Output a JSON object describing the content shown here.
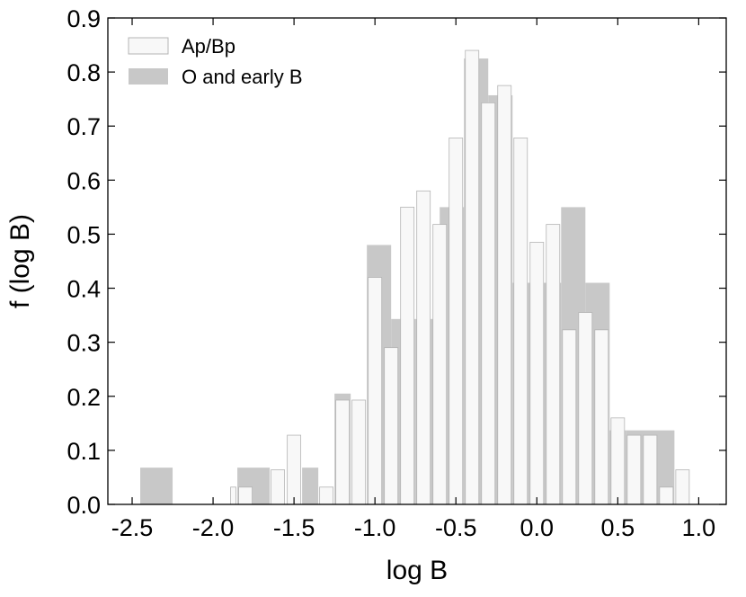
{
  "chart_data": {
    "type": "bar",
    "xlabel": "log B",
    "ylabel": "f (log B)",
    "xlim": [
      -2.65,
      1.17
    ],
    "ylim": [
      0,
      0.9
    ],
    "xticks": [
      -2.5,
      -2.0,
      -1.5,
      -1.0,
      -0.5,
      0.0,
      0.5,
      1.0
    ],
    "xtick_labels": [
      "-2.5",
      "-2.0",
      "-1.5",
      "-1.0",
      "-0.5",
      "0.0",
      "0.5",
      "1.0"
    ],
    "yticks": [
      0.0,
      0.1,
      0.2,
      0.3,
      0.4,
      0.5,
      0.6,
      0.7,
      0.8,
      0.9
    ],
    "ytick_labels": [
      "0.0",
      "0.1",
      "0.2",
      "0.3",
      "0.4",
      "0.5",
      "0.6",
      "0.7",
      "0.8",
      "0.9"
    ],
    "legend_position": "top-left",
    "series": [
      {
        "name": "O and early B",
        "color": "#c8c8c8",
        "bins": [
          {
            "x0": -2.45,
            "x1": -2.25,
            "y": 0.068
          },
          {
            "x0": -1.85,
            "x1": -1.65,
            "y": 0.068
          },
          {
            "x0": -1.45,
            "x1": -1.35,
            "y": 0.068
          },
          {
            "x0": -1.25,
            "x1": -1.15,
            "y": 0.205
          },
          {
            "x0": -1.05,
            "x1": -0.9,
            "y": 0.48
          },
          {
            "x0": -0.9,
            "x1": -0.75,
            "y": 0.343
          },
          {
            "x0": -0.75,
            "x1": -0.6,
            "y": 0.343
          },
          {
            "x0": -0.6,
            "x1": -0.45,
            "y": 0.55
          },
          {
            "x0": -0.45,
            "x1": -0.3,
            "y": 0.825
          },
          {
            "x0": -0.3,
            "x1": -0.15,
            "y": 0.757
          },
          {
            "x0": -0.15,
            "x1": 0.0,
            "y": 0.41
          },
          {
            "x0": 0.0,
            "x1": 0.15,
            "y": 0.41
          },
          {
            "x0": 0.15,
            "x1": 0.3,
            "y": 0.55
          },
          {
            "x0": 0.3,
            "x1": 0.45,
            "y": 0.41
          },
          {
            "x0": 0.45,
            "x1": 0.55,
            "y": 0.137
          },
          {
            "x0": 0.55,
            "x1": 0.85,
            "y": 0.137
          }
        ]
      },
      {
        "name": "Ap/Bp",
        "color": "#f8f8f8",
        "bins": [
          {
            "x0": -1.9,
            "x1": -1.85,
            "y": 0.032
          },
          {
            "x0": -1.85,
            "x1": -1.75,
            "y": 0.032
          },
          {
            "x0": -1.65,
            "x1": -1.55,
            "y": 0.064
          },
          {
            "x0": -1.55,
            "x1": -1.45,
            "y": 0.128
          },
          {
            "x0": -1.35,
            "x1": -1.25,
            "y": 0.032
          },
          {
            "x0": -1.25,
            "x1": -1.15,
            "y": 0.193
          },
          {
            "x0": -1.15,
            "x1": -1.05,
            "y": 0.193
          },
          {
            "x0": -1.05,
            "x1": -0.95,
            "y": 0.42
          },
          {
            "x0": -0.95,
            "x1": -0.85,
            "y": 0.29
          },
          {
            "x0": -0.85,
            "x1": -0.75,
            "y": 0.55
          },
          {
            "x0": -0.75,
            "x1": -0.65,
            "y": 0.58
          },
          {
            "x0": -0.65,
            "x1": -0.55,
            "y": 0.518
          },
          {
            "x0": -0.55,
            "x1": -0.45,
            "y": 0.678
          },
          {
            "x0": -0.45,
            "x1": -0.35,
            "y": 0.84
          },
          {
            "x0": -0.35,
            "x1": -0.25,
            "y": 0.743
          },
          {
            "x0": -0.25,
            "x1": -0.15,
            "y": 0.775
          },
          {
            "x0": -0.15,
            "x1": -0.05,
            "y": 0.678
          },
          {
            "x0": -0.05,
            "x1": 0.05,
            "y": 0.485
          },
          {
            "x0": 0.05,
            "x1": 0.15,
            "y": 0.518
          },
          {
            "x0": 0.15,
            "x1": 0.25,
            "y": 0.323
          },
          {
            "x0": 0.25,
            "x1": 0.35,
            "y": 0.355
          },
          {
            "x0": 0.35,
            "x1": 0.45,
            "y": 0.323
          },
          {
            "x0": 0.45,
            "x1": 0.55,
            "y": 0.16
          },
          {
            "x0": 0.55,
            "x1": 0.65,
            "y": 0.128
          },
          {
            "x0": 0.65,
            "x1": 0.75,
            "y": 0.128
          },
          {
            "x0": 0.75,
            "x1": 0.85,
            "y": 0.032
          },
          {
            "x0": 0.85,
            "x1": 0.95,
            "y": 0.064
          }
        ]
      }
    ]
  }
}
